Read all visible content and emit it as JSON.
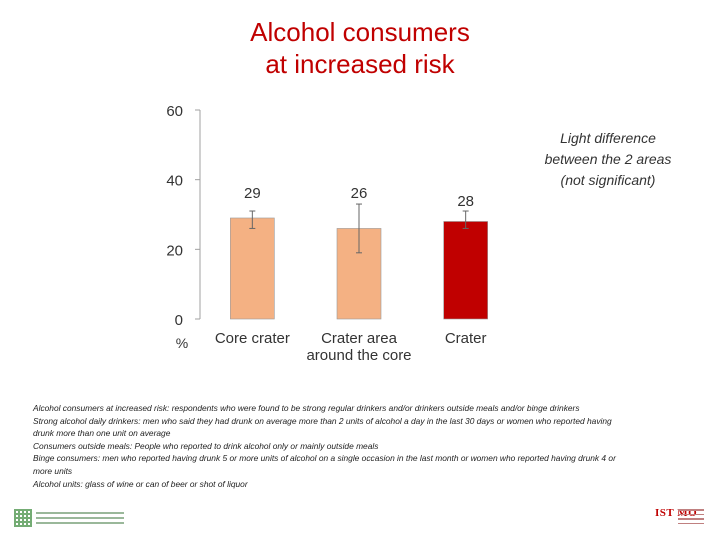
{
  "title_lines": [
    "Alcohol consumers",
    "at increased risk"
  ],
  "annotation_lines": [
    "Light difference",
    "between the 2 areas",
    "(not significant)"
  ],
  "chart_data": {
    "type": "bar",
    "categories": [
      {
        "lines": [
          "Core crater"
        ]
      },
      {
        "lines": [
          "Crater area",
          "around the core"
        ]
      },
      {
        "lines": [
          "Crater"
        ]
      }
    ],
    "values": [
      29,
      26,
      28
    ],
    "value_labels": [
      "29",
      "26",
      "28"
    ],
    "error_bars": [
      {
        "low": 26,
        "high": 31
      },
      {
        "low": 19,
        "high": 33
      },
      {
        "low": 26,
        "high": 31
      }
    ],
    "bar_colors": [
      "#f4b183",
      "#f4b183",
      "#c00000"
    ],
    "yticks": [
      "0",
      "20",
      "40",
      "60"
    ],
    "ylim": [
      0,
      60
    ],
    "ylabel": "%",
    "xlabel": "",
    "grid": false,
    "legend": "none"
  },
  "notes": [
    "Alcohol consumers at increased risk: respondents who were found to be strong regular drinkers and/or drinkers outside meals and/or binge drinkers",
    "Strong alcohol daily drinkers: men who said they had drunk on average more than 2 units of alcohol a day in the last 30 days or women who reported having",
    "drunk more than one unit on average",
    "Consumers outside meals: People who reported to drink alcohol only or mainly outside meals",
    "Binge consumers: men who reported having drunk 5 or more units of alcohol on a single occasion in the last month or women who reported having drunk 4 or",
    "more units",
    "Alcohol units: glass of wine or can of beer or shot of liquor"
  ],
  "logos": {
    "right_mark": "IST MO",
    "left_mark_icon": "institute-logo-icon"
  },
  "colors": {
    "title": "#c00000",
    "bar_light": "#f4b183",
    "bar_dark": "#c00000",
    "axis": "#a0a0a0"
  }
}
